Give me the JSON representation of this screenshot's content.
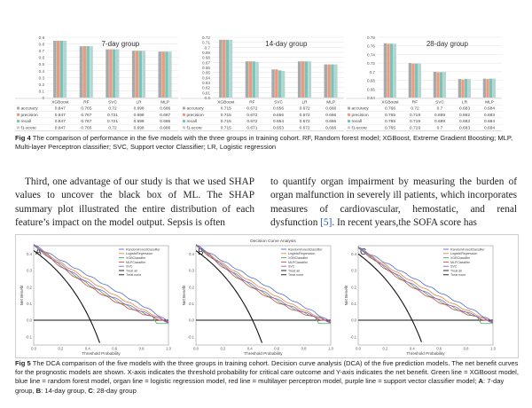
{
  "fig4": {
    "row_labels": [
      "accuracy",
      "precision",
      "recall",
      "f1-score"
    ],
    "colors": [
      "#a9a9a9",
      "#e89c7e",
      "#79c5bb",
      "#b7d5d0"
    ],
    "caption_label": "Fig 4",
    "caption_text": "The comparison of performance in the five models with the three groups in training cohort. RF, Random forest model; XGBoost, Extreme Gradient Boosting; MLP, Multi-layer Perceptron classifier; SVC, Support vector Classifier; LR, Logistic regression",
    "charts": [
      {
        "title": "7-day group",
        "ylim": [
          0,
          0.9
        ],
        "yticks": [
          "0",
          "0.1",
          "0.2",
          "0.3",
          "0.4",
          "0.5",
          "0.6",
          "0.7",
          "0.8",
          "0.9"
        ],
        "models": [
          "XGBoost",
          "RF",
          "SVC",
          "LR",
          "MLP"
        ],
        "values": [
          [
            "0.847",
            "0.765",
            "0.72",
            "0.698",
            "0.686"
          ],
          [
            "0.847",
            "0.767",
            "0.721",
            "0.698",
            "0.687"
          ],
          [
            "0.847",
            "0.767",
            "0.721",
            "0.698",
            "0.686"
          ],
          [
            "0.847",
            "0.765",
            "0.72",
            "0.698",
            "0.686"
          ]
        ]
      },
      {
        "title": "14-day group",
        "ylim": [
          0.6,
          0.72
        ],
        "yticks": [
          "0.6",
          "0.61",
          "0.62",
          "0.63",
          "0.64",
          "0.65",
          "0.66",
          "0.67",
          "0.68",
          "0.69",
          "0.7",
          "0.71",
          "0.72"
        ],
        "models": [
          "XGBoost",
          "RF",
          "SVC",
          "LR",
          "MLP"
        ],
        "values": [
          [
            "0.715",
            "0.672",
            "0.656",
            "0.672",
            "0.666"
          ],
          [
            "0.715",
            "0.672",
            "0.656",
            "0.672",
            "0.666"
          ],
          [
            "0.715",
            "0.672",
            "0.654",
            "0.672",
            "0.666"
          ],
          [
            "0.715",
            "0.671",
            "0.653",
            "0.672",
            "0.666"
          ]
        ]
      },
      {
        "title": "28-day group",
        "ylim": [
          0.64,
          0.78
        ],
        "yticks": [
          "0.64",
          "0.66",
          "0.68",
          "0.7",
          "0.72",
          "0.74",
          "0.76",
          "0.78"
        ],
        "models": [
          "XGBoost",
          "RF",
          "SVC",
          "LR",
          "MLP"
        ],
        "values": [
          [
            "0.766",
            "0.72",
            "0.7",
            "0.683",
            "0.684"
          ],
          [
            "0.765",
            "0.719",
            "0.699",
            "0.682",
            "0.683"
          ],
          [
            "0.765",
            "0.719",
            "0.699",
            "0.683",
            "0.684"
          ],
          [
            "0.765",
            "0.719",
            "0.7",
            "0.683",
            "0.684"
          ]
        ]
      }
    ]
  },
  "body": {
    "col_left": "Third, one advantage of our study is that we used SHAP values to uncover the black box of ML. The SHAP summary plot illustrated the entire distribution of each feature’s impact on the model output. Sepsis is often",
    "col_right_a": "to quantify organ impairment by measuring the burden of organ malfunction in severely ill patients, which incorporates measures of cardiovascular, hemostatic, and renal dysfunction ",
    "col_right_ref": "[5]",
    "col_right_b": ". In recent years,the SOFA score has"
  },
  "fig5": {
    "suptitle": "Decision Curve Analysis",
    "ylabel": "Net Benefit",
    "xlabel": "Threshold Probability",
    "xticks": [
      "0.0",
      "0.2",
      "0.4",
      "0.6",
      "0.8",
      "1.0"
    ],
    "yticks": [
      "0.4",
      "0.3",
      "0.2",
      "0.1",
      "0.0",
      "-0.1"
    ],
    "legend": [
      "RandomForestClassifier",
      "LogisticRegression",
      "XGBClassifier",
      "MLPClassifier",
      "SVC",
      "Treat all",
      "Treat none"
    ],
    "line_colors": [
      "#4f6fcf",
      "#e08a3a",
      "#48a65a",
      "#d04a4a",
      "#8b63c8",
      "#111111",
      "#111111"
    ],
    "panels": [
      "A",
      "B",
      "C"
    ],
    "caption_label": "Fig 5",
    "caption_text": "The DCA comparison of the five models with the three groups in training cohort.     Decision curve analysis (DCA) of the five prediction models. The net benefit curves for the prognostic models are shown. X-axis indicates the threshold probability for critical care outcome and Y-axis indicates the net benefit. Green line = XGBoost model, blue line = random forest model, organ line = logistic regression model, red line = multilayer perceptron model, purple line = support vector classifier model; ",
    "caption_a": "A",
    "caption_a_text": ": 7-day group, ",
    "caption_b": "B",
    "caption_b_text": ": 14-day group, ",
    "caption_c": "C",
    "caption_c_text": ": 28-day group"
  }
}
